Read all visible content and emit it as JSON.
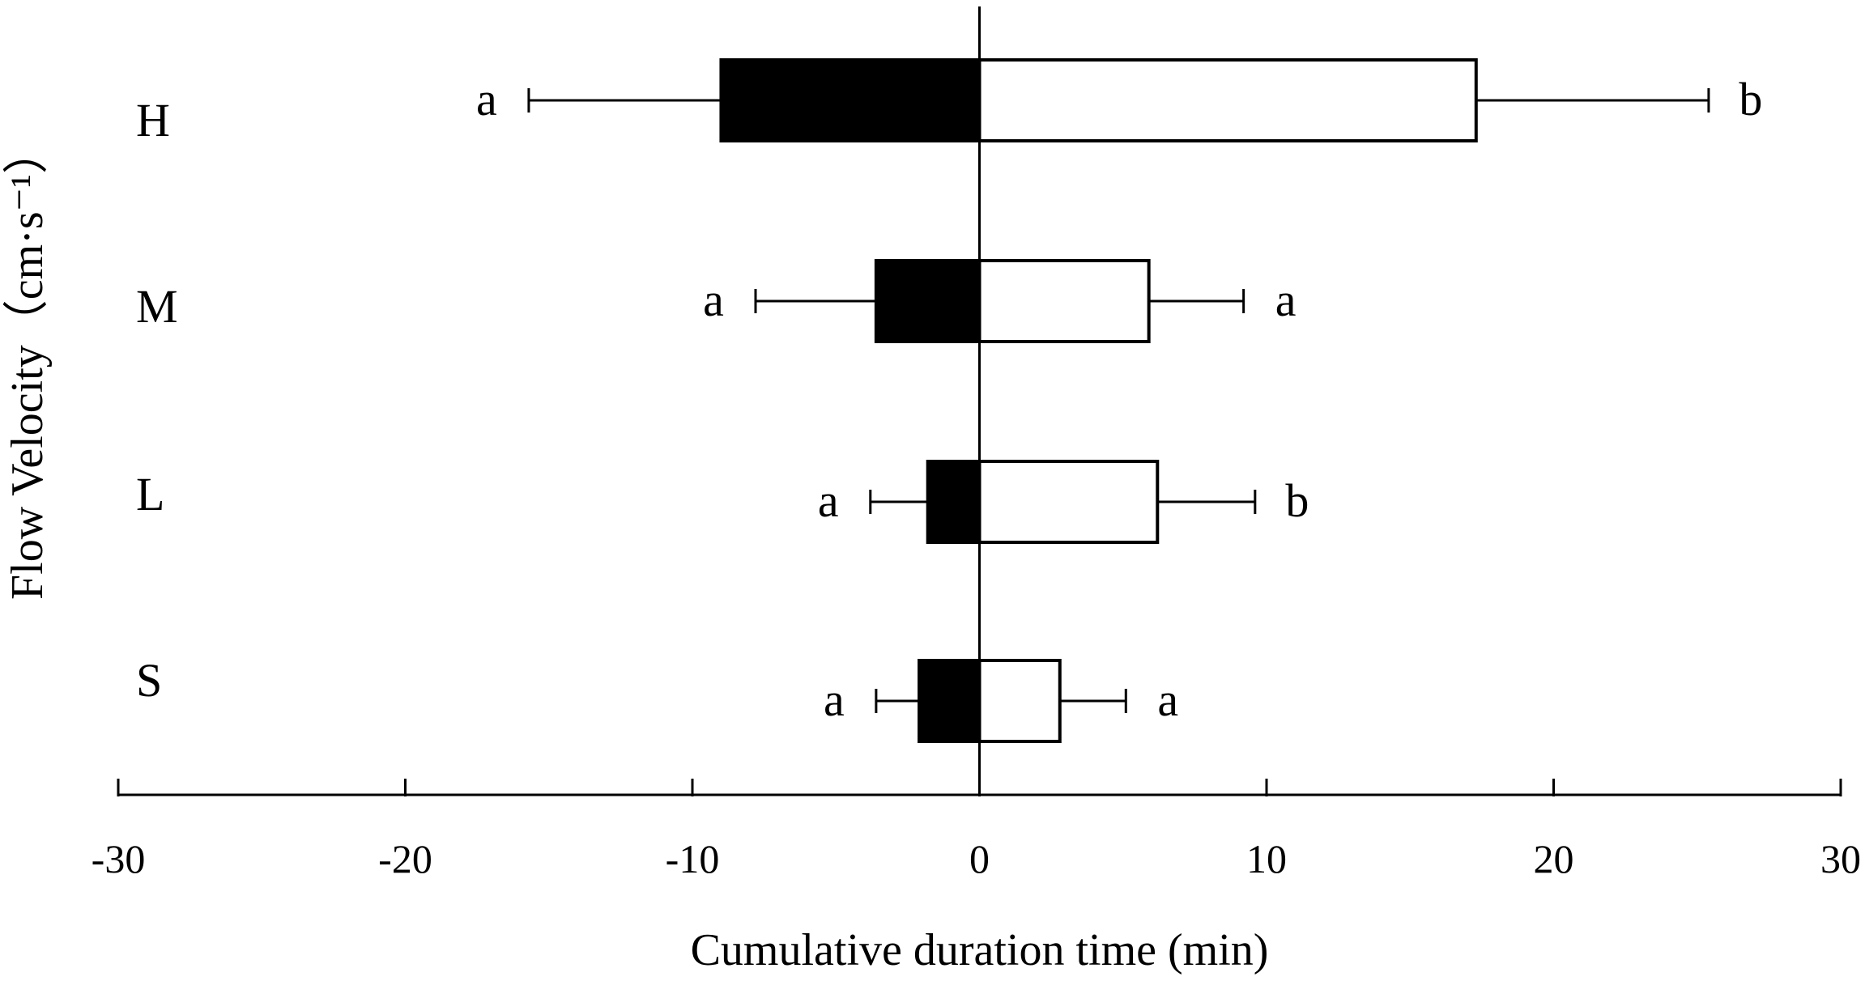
{
  "chart_data": {
    "type": "bar",
    "orientation": "horizontal",
    "stacked_diverging": true,
    "title": "",
    "xlabel": "Cumulative duration time (min)",
    "ylabel": "Flow Velocity（cm·s⁻¹）",
    "xlim": [
      -30,
      30
    ],
    "xticks": [
      -30,
      -20,
      -10,
      0,
      10,
      20,
      30
    ],
    "xtick_labels": [
      "-30",
      "-20",
      "-10",
      "0",
      "10",
      "20",
      "30"
    ],
    "categories": [
      "H",
      "M",
      "L",
      "S"
    ],
    "series": [
      {
        "fill": "#000000",
        "values": [
          -9.0,
          -3.6,
          -1.8,
          -2.1
        ],
        "error": [
          6.7,
          4.2,
          2.0,
          1.5
        ],
        "letters": [
          "a",
          "a",
          "a",
          "a"
        ]
      },
      {
        "fill": "#ffffff",
        "values": [
          17.3,
          5.9,
          6.2,
          2.8
        ],
        "error": [
          8.1,
          3.3,
          3.4,
          2.3
        ],
        "letters": [
          "b",
          "a",
          "b",
          "a"
        ]
      }
    ],
    "grid": false,
    "legend": "none"
  }
}
